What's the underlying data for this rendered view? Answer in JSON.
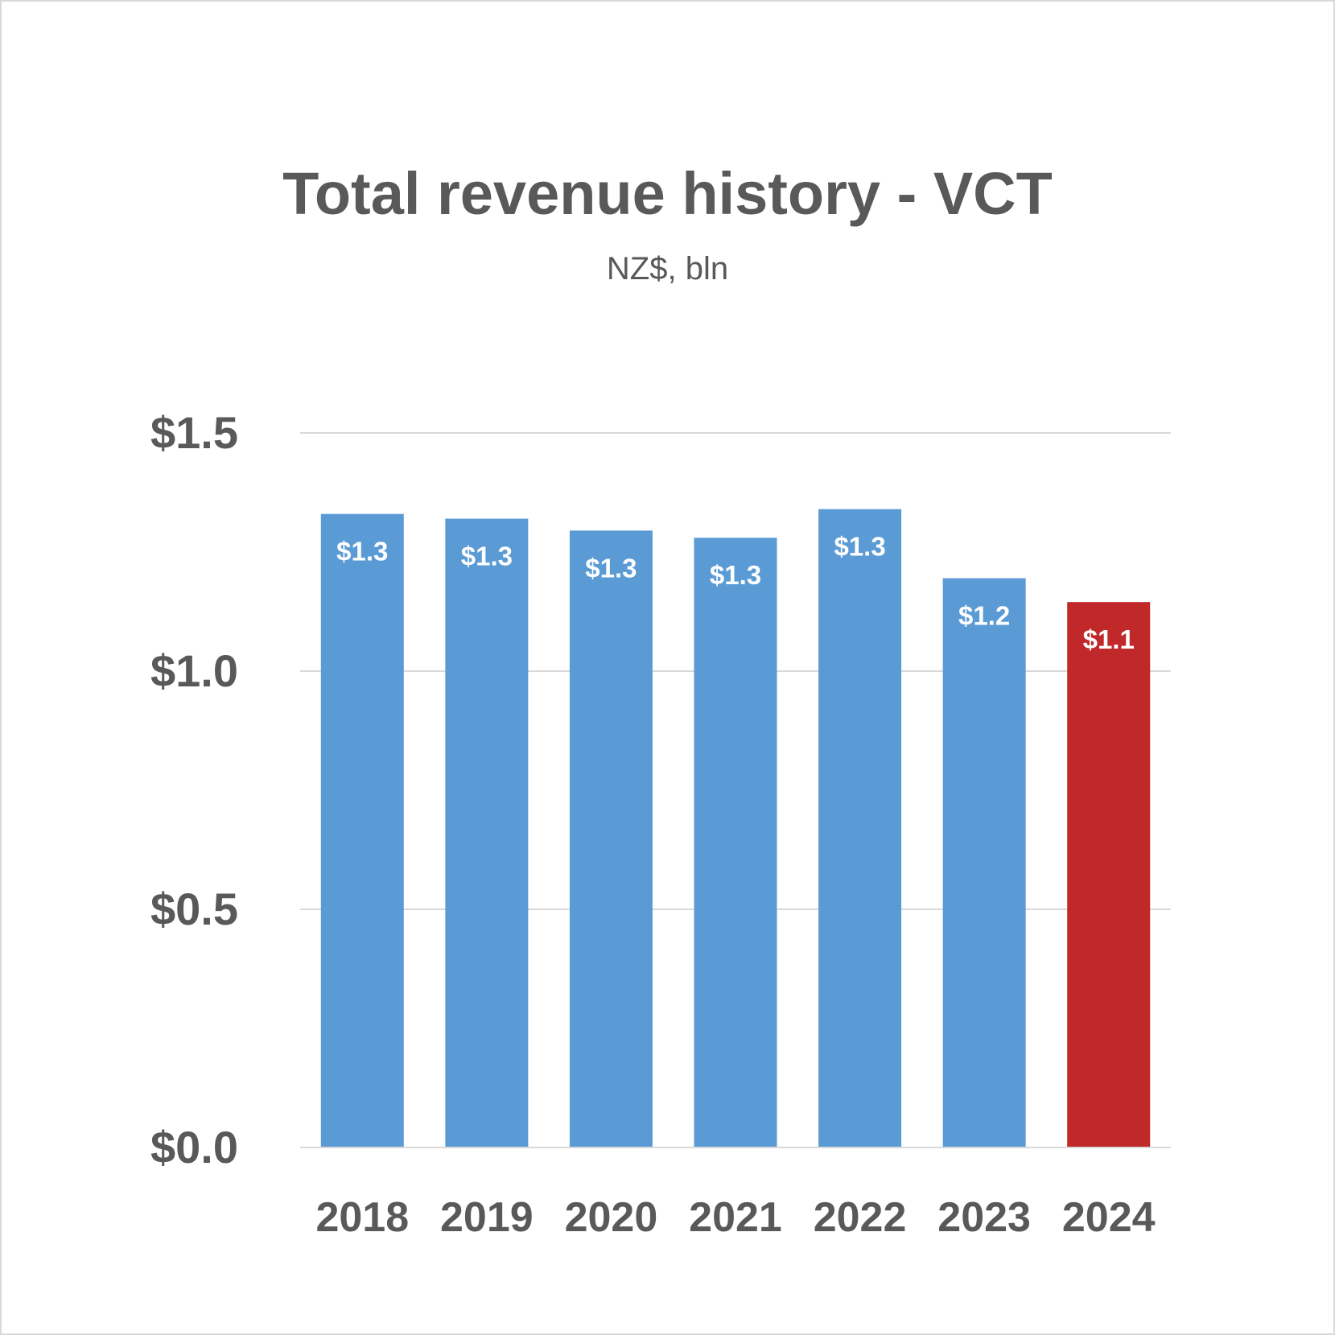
{
  "chart_data": {
    "type": "bar",
    "title": "Total revenue history - VCT",
    "subtitle": "NZ$, bln",
    "xlabel": "",
    "ylabel": "",
    "categories": [
      "2018",
      "2019",
      "2020",
      "2021",
      "2022",
      "2023",
      "2024"
    ],
    "values": [
      1.33,
      1.32,
      1.295,
      1.28,
      1.34,
      1.195,
      1.145
    ],
    "data_labels": [
      "$1.3",
      "$1.3",
      "$1.3",
      "$1.3",
      "$1.3",
      "$1.2",
      "$1.1"
    ],
    "ylim": [
      0,
      1.5
    ],
    "yticks": [
      0.0,
      0.5,
      1.0,
      1.5
    ],
    "ytick_labels": [
      "$0.0",
      "$0.5",
      "$1.0",
      "$1.5"
    ],
    "grid": true,
    "legend": "none",
    "colors": {
      "default_bar": "#5b9bd5",
      "highlight_bar": "#c0282a",
      "text": "#595959",
      "grid": "#d9d9d9",
      "label": "#ffffff"
    },
    "highlight_index": 6
  }
}
